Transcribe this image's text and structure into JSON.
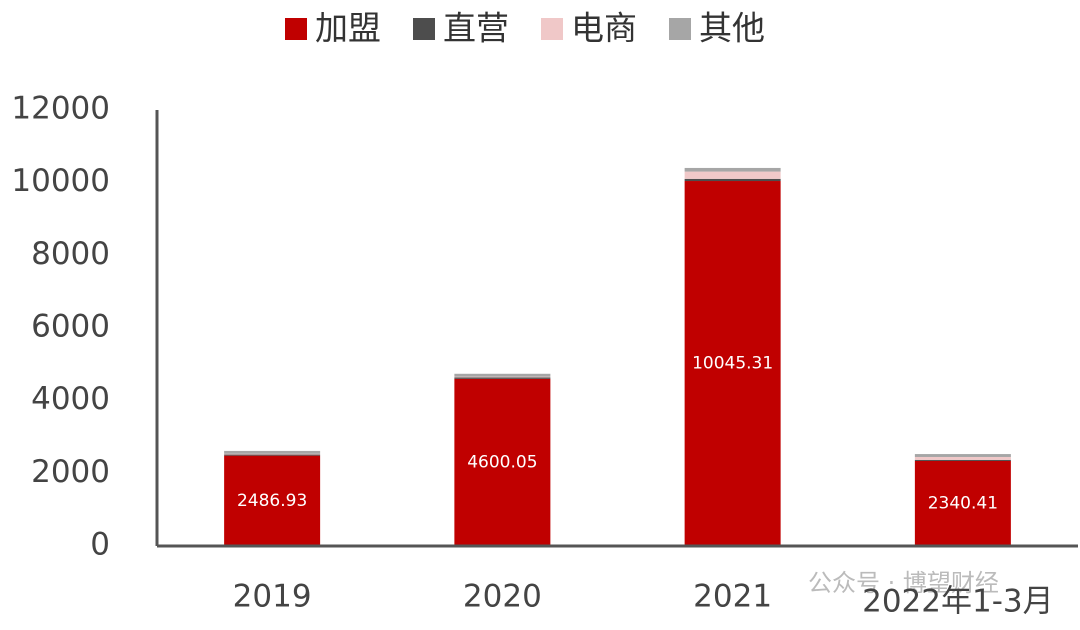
{
  "chart_data": {
    "type": "stacked-bar",
    "categories": [
      "2019",
      "2020",
      "2021",
      "2022年1-3月"
    ],
    "series": [
      {
        "name": "加盟",
        "color": "#c00000",
        "values": [
          2486.93,
          4600.05,
          10045.31,
          2340.41
        ]
      },
      {
        "name": "直营",
        "color": "#4d4d4d",
        "values": [
          30,
          40,
          60,
          30
        ]
      },
      {
        "name": "电商",
        "color": "#f0c8c8",
        "values": [
          20,
          20,
          200,
          80
        ]
      },
      {
        "name": "其他",
        "color": "#a6a6a6",
        "values": [
          80,
          80,
          100,
          80
        ]
      }
    ],
    "ylim": [
      0,
      12000
    ],
    "yticks": [
      0,
      2000,
      4000,
      6000,
      8000,
      10000,
      12000
    ],
    "grid": false,
    "legend": "top",
    "watermark": "公众号 · 博望财经"
  }
}
